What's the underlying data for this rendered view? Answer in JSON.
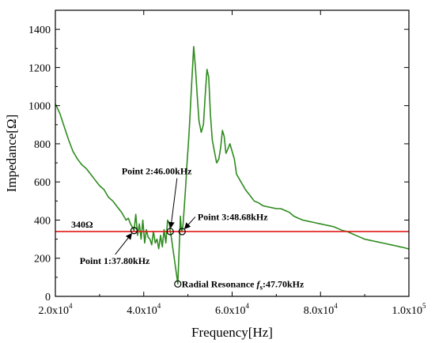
{
  "chart_data": {
    "type": "line",
    "title": "",
    "xlabel": "Frequency[Hz]",
    "ylabel": "Impedance[Ω]",
    "xlim": [
      20000,
      100000
    ],
    "ylim": [
      0,
      1500
    ],
    "x_ticks": [
      {
        "value": 20000,
        "mant": "2.0x10",
        "exp": "4"
      },
      {
        "value": 40000,
        "mant": "4.0x10",
        "exp": "4"
      },
      {
        "value": 60000,
        "mant": "6.0x10",
        "exp": "4"
      },
      {
        "value": 80000,
        "mant": "8.0x10",
        "exp": "4"
      },
      {
        "value": 100000,
        "mant": "1.0x10",
        "exp": "5"
      }
    ],
    "y_ticks": [
      0,
      200,
      400,
      600,
      800,
      1000,
      1200,
      1400
    ],
    "grid": false,
    "series": [
      {
        "color": "#2e8b1e",
        "x": [
          20000,
          21000,
          22000,
          23000,
          24000,
          25000,
          26000,
          27000,
          28000,
          29000,
          30000,
          31000,
          32000,
          33000,
          34000,
          35000,
          35500,
          36000,
          36500,
          37000,
          37500,
          37800,
          38200,
          38600,
          39000,
          39400,
          39800,
          40200,
          40600,
          41000,
          41400,
          41800,
          42200,
          42600,
          43000,
          43400,
          43800,
          44200,
          44600,
          45000,
          45400,
          45800,
          46000,
          46300,
          46600,
          46900,
          47200,
          47500,
          47700,
          47900,
          48100,
          48300,
          48500,
          48680,
          48900,
          49200,
          49500,
          49800,
          50100,
          50400,
          50700,
          51000,
          51300,
          51700,
          52100,
          52500,
          53000,
          53500,
          53900,
          54300,
          54700,
          55100,
          55500,
          56000,
          56500,
          57000,
          57400,
          57800,
          58200,
          58600,
          59000,
          59500,
          60000,
          60500,
          61000,
          62000,
          63000,
          64000,
          65000,
          66000,
          67000,
          68000,
          69000,
          70000,
          71000,
          72000,
          73000,
          74000,
          75000,
          76000,
          77000,
          78000,
          79000,
          80000,
          81000,
          82000,
          83000,
          84000,
          85000,
          86000,
          87000,
          88000,
          89000,
          90000,
          91000,
          92000,
          93000,
          94000,
          95000,
          96000,
          97000,
          98000,
          99000,
          100000
        ],
        "values": [
          1010,
          960,
          890,
          820,
          760,
          720,
          690,
          670,
          640,
          610,
          580,
          560,
          520,
          500,
          470,
          440,
          420,
          400,
          410,
          380,
          360,
          345,
          430,
          320,
          380,
          300,
          400,
          280,
          350,
          310,
          300,
          270,
          340,
          280,
          300,
          250,
          320,
          260,
          350,
          280,
          400,
          380,
          340,
          300,
          250,
          200,
          150,
          100,
          65,
          180,
          300,
          420,
          350,
          340,
          380,
          480,
          580,
          700,
          800,
          920,
          1050,
          1180,
          1310,
          1200,
          1050,
          920,
          860,
          900,
          1050,
          1190,
          1150,
          950,
          820,
          760,
          700,
          720,
          780,
          870,
          840,
          750,
          770,
          800,
          760,
          720,
          640,
          600,
          560,
          530,
          500,
          490,
          475,
          470,
          465,
          460,
          460,
          450,
          440,
          420,
          410,
          400,
          395,
          390,
          385,
          380,
          375,
          370,
          365,
          355,
          345,
          340,
          330,
          320,
          310,
          300,
          295,
          290,
          285,
          280,
          275,
          270,
          265,
          260,
          255,
          248
        ]
      }
    ],
    "reference_line": {
      "y": 340,
      "label": "340Ω",
      "color": "#e31a1a"
    },
    "annotations": [
      {
        "label": "Point 1:37.80kHz",
        "x": 37800,
        "y": 345,
        "text_x": 25500,
        "text_y": 170,
        "arrow": true
      },
      {
        "label": "Point 2:46.00kHz",
        "x": 46000,
        "y": 340,
        "text_x": 35000,
        "text_y": 640,
        "arrow": true
      },
      {
        "label": "Point 3:48.68kHz",
        "x": 48680,
        "y": 340,
        "text_x": 52200,
        "text_y": 400,
        "arrow": true
      },
      {
        "label_main": "Radial Resonance ",
        "label_italic": "f",
        "label_sub": "s",
        "label_tail": ":47.70kHz",
        "x": 47700,
        "y": 65,
        "text_x": 48600,
        "text_y": 65,
        "arrow": false
      }
    ]
  }
}
